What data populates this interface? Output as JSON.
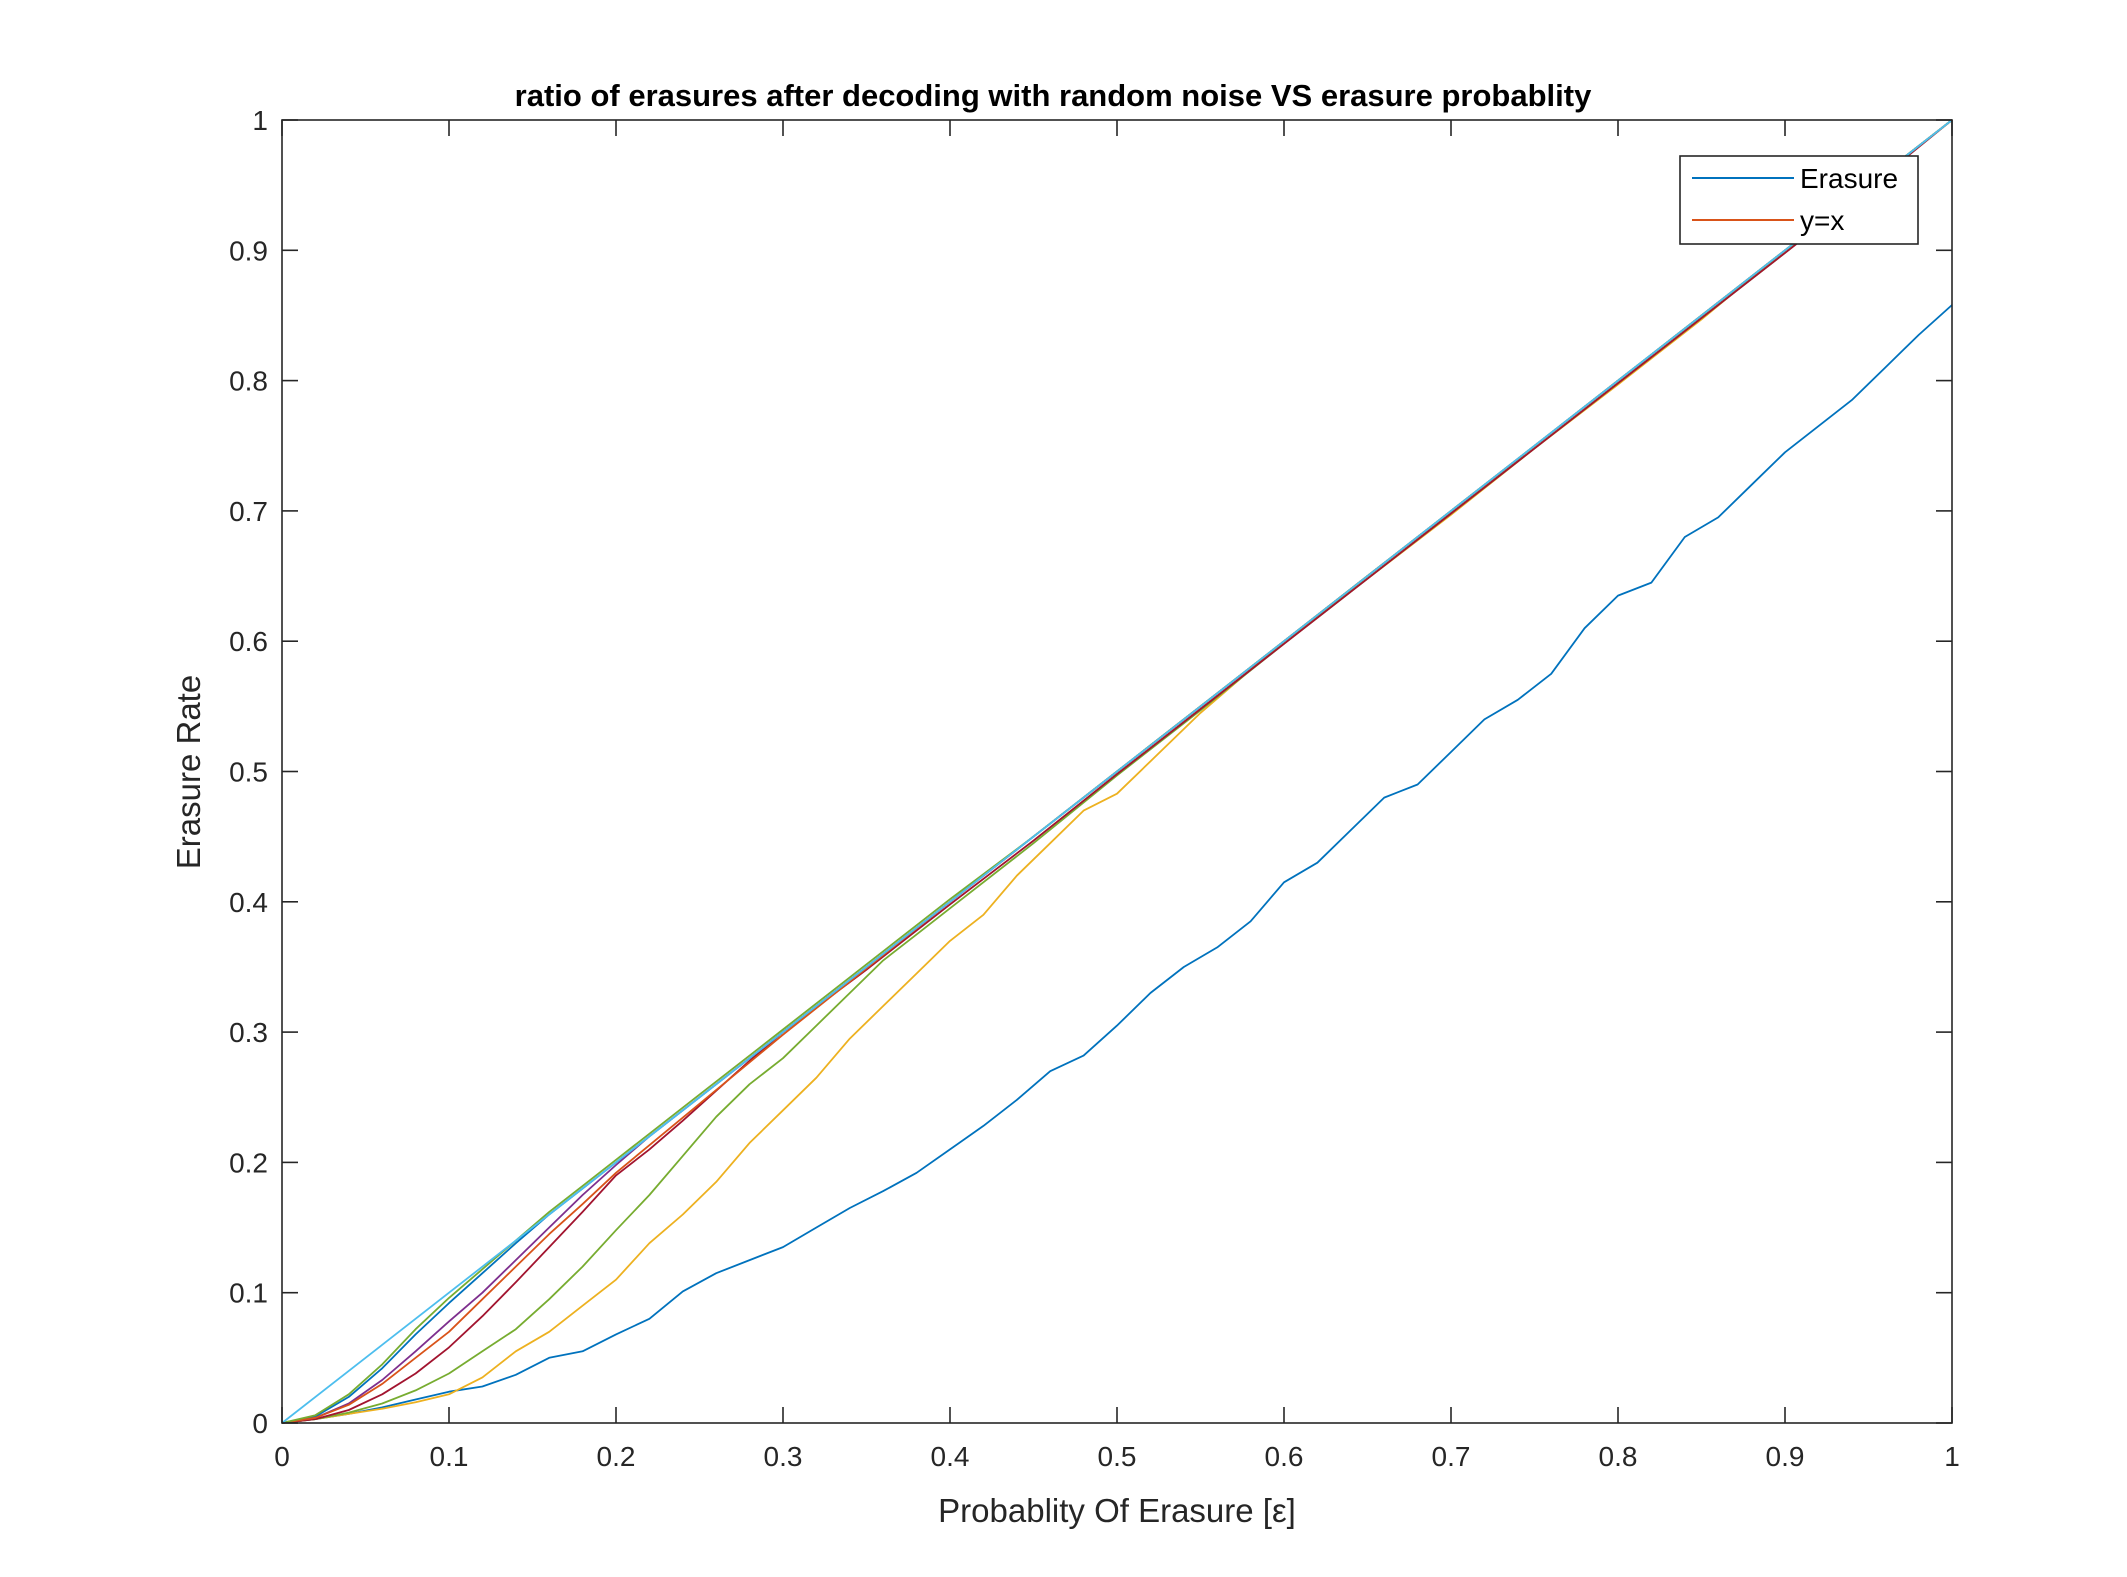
{
  "chart_data": {
    "type": "line",
    "title": "ratio of erasures after decoding with random noise VS erasure probablity",
    "xlabel": "Probablity Of Erasure [ε]",
    "ylabel": "Erasure Rate",
    "xlim": [
      0,
      1
    ],
    "ylim": [
      0,
      1
    ],
    "xticks": [
      "0",
      "0.1",
      "0.2",
      "0.3",
      "0.4",
      "0.5",
      "0.6",
      "0.7",
      "0.8",
      "0.9",
      "1"
    ],
    "yticks": [
      "0",
      "0.1",
      "0.2",
      "0.3",
      "0.4",
      "0.5",
      "0.6",
      "0.7",
      "0.8",
      "0.9",
      "1"
    ],
    "grid": false,
    "legend": {
      "placement": "top-right",
      "entries": [
        {
          "label": "Erasure",
          "color": "#0072BD"
        },
        {
          "label": "y=x",
          "color": "#D95319"
        }
      ]
    },
    "series": [
      {
        "color": "#0072BD",
        "x": [
          0,
          0.02,
          0.04,
          0.06,
          0.08,
          0.1,
          0.12,
          0.14,
          0.16,
          0.18,
          0.2,
          0.22,
          0.24,
          0.26,
          0.28,
          0.3,
          0.32,
          0.34,
          0.36,
          0.38,
          0.4,
          0.42,
          0.44,
          0.46,
          0.48,
          0.5,
          0.52,
          0.54,
          0.56,
          0.58,
          0.6,
          0.62,
          0.64,
          0.66,
          0.68,
          0.7,
          0.72,
          0.74,
          0.76,
          0.78,
          0.8,
          0.82,
          0.84,
          0.86,
          0.88,
          0.9,
          0.92,
          0.94,
          0.96,
          0.98,
          1.0
        ],
        "y": [
          0,
          0.003,
          0.007,
          0.012,
          0.018,
          0.024,
          0.028,
          0.037,
          0.05,
          0.055,
          0.068,
          0.08,
          0.101,
          0.115,
          0.125,
          0.135,
          0.15,
          0.165,
          0.178,
          0.192,
          0.21,
          0.228,
          0.248,
          0.27,
          0.282,
          0.305,
          0.33,
          0.35,
          0.365,
          0.385,
          0.415,
          0.43,
          0.455,
          0.48,
          0.49,
          0.515,
          0.54,
          0.555,
          0.575,
          0.61,
          0.635,
          0.645,
          0.68,
          0.695,
          0.72,
          0.745,
          0.765,
          0.785,
          0.81,
          0.835,
          0.858
        ]
      },
      {
        "color": "#EDB120",
        "x": [
          0,
          0.02,
          0.04,
          0.06,
          0.08,
          0.1,
          0.12,
          0.14,
          0.16,
          0.18,
          0.2,
          0.22,
          0.24,
          0.26,
          0.28,
          0.3,
          0.32,
          0.34,
          0.36,
          0.38,
          0.4,
          0.42,
          0.44,
          0.46,
          0.48,
          0.5,
          0.55,
          0.6,
          0.65,
          0.7,
          0.75,
          0.8,
          0.85,
          0.9,
          0.95,
          1.0
        ],
        "y": [
          0,
          0.003,
          0.007,
          0.011,
          0.016,
          0.022,
          0.035,
          0.055,
          0.07,
          0.09,
          0.11,
          0.138,
          0.16,
          0.185,
          0.215,
          0.24,
          0.265,
          0.295,
          0.32,
          0.345,
          0.37,
          0.39,
          0.42,
          0.445,
          0.47,
          0.483,
          0.545,
          0.6,
          0.648,
          0.697,
          0.748,
          0.797,
          0.847,
          0.9,
          0.95,
          1.0
        ]
      },
      {
        "color": "#77AC30",
        "x": [
          0,
          0.02,
          0.04,
          0.06,
          0.08,
          0.1,
          0.12,
          0.14,
          0.16,
          0.18,
          0.2,
          0.22,
          0.24,
          0.26,
          0.28,
          0.3,
          0.32,
          0.34,
          0.36,
          0.38,
          0.4,
          0.45,
          0.5,
          0.55,
          0.6,
          0.65,
          0.7,
          0.75,
          0.8,
          0.85,
          0.9,
          0.95,
          1.0
        ],
        "y": [
          0,
          0.003,
          0.008,
          0.015,
          0.025,
          0.038,
          0.055,
          0.072,
          0.095,
          0.12,
          0.148,
          0.175,
          0.205,
          0.235,
          0.26,
          0.28,
          0.305,
          0.33,
          0.355,
          0.375,
          0.395,
          0.445,
          0.497,
          0.547,
          0.598,
          0.648,
          0.698,
          0.748,
          0.798,
          0.848,
          0.898,
          0.95,
          1.0
        ]
      },
      {
        "color": "#A2142F",
        "x": [
          0,
          0.02,
          0.04,
          0.06,
          0.08,
          0.1,
          0.12,
          0.14,
          0.16,
          0.18,
          0.2,
          0.22,
          0.24,
          0.26,
          0.28,
          0.3,
          0.35,
          0.4,
          0.45,
          0.5,
          0.55,
          0.6,
          0.65,
          0.7,
          0.75,
          0.8,
          0.85,
          0.9,
          0.95,
          1.0
        ],
        "y": [
          0,
          0.003,
          0.01,
          0.022,
          0.038,
          0.058,
          0.082,
          0.108,
          0.135,
          0.162,
          0.19,
          0.21,
          0.232,
          0.255,
          0.278,
          0.3,
          0.348,
          0.398,
          0.447,
          0.498,
          0.548,
          0.598,
          0.648,
          0.698,
          0.748,
          0.798,
          0.848,
          0.898,
          0.948,
          1.0
        ]
      },
      {
        "color": "#7E2F8E",
        "x": [
          0,
          0.02,
          0.04,
          0.06,
          0.08,
          0.1,
          0.12,
          0.14,
          0.16,
          0.18,
          0.2,
          0.22,
          0.24,
          0.26,
          0.28,
          0.3,
          0.35,
          0.4,
          0.45,
          0.5,
          0.55,
          0.6,
          0.65,
          0.7,
          0.75,
          0.8,
          0.85,
          0.9,
          0.95,
          1.0
        ],
        "y": [
          0,
          0.004,
          0.015,
          0.033,
          0.055,
          0.078,
          0.1,
          0.125,
          0.15,
          0.175,
          0.198,
          0.22,
          0.24,
          0.26,
          0.28,
          0.3,
          0.35,
          0.4,
          0.45,
          0.5,
          0.55,
          0.6,
          0.65,
          0.7,
          0.75,
          0.8,
          0.85,
          0.9,
          0.95,
          1.0
        ]
      },
      {
        "color": "#0072BD",
        "x": [
          0,
          0.02,
          0.04,
          0.06,
          0.08,
          0.1,
          0.12,
          0.14,
          0.16,
          0.18,
          0.2,
          0.25,
          0.3,
          0.35,
          0.4,
          0.45,
          0.5,
          0.55,
          0.6,
          0.65,
          0.7,
          0.75,
          0.8,
          0.85,
          0.9,
          0.95,
          1.0
        ],
        "y": [
          0,
          0.005,
          0.02,
          0.042,
          0.068,
          0.092,
          0.115,
          0.138,
          0.16,
          0.18,
          0.2,
          0.25,
          0.3,
          0.35,
          0.4,
          0.45,
          0.5,
          0.55,
          0.6,
          0.65,
          0.7,
          0.75,
          0.8,
          0.85,
          0.9,
          0.95,
          1.0
        ]
      },
      {
        "color": "#D95319",
        "x": [
          0,
          0.02,
          0.04,
          0.06,
          0.08,
          0.1,
          0.12,
          0.14,
          0.16,
          0.18,
          0.2,
          0.25,
          0.3,
          0.35,
          0.4,
          0.45,
          0.5,
          0.55,
          0.6,
          0.65,
          0.7,
          0.75,
          0.8,
          0.85,
          0.9,
          0.95,
          1.0
        ],
        "y": [
          0,
          0.004,
          0.014,
          0.03,
          0.05,
          0.07,
          0.095,
          0.12,
          0.145,
          0.168,
          0.192,
          0.245,
          0.298,
          0.349,
          0.4,
          0.45,
          0.5,
          0.55,
          0.6,
          0.65,
          0.7,
          0.75,
          0.8,
          0.85,
          0.9,
          0.95,
          1.0
        ]
      },
      {
        "color": "#77AC30",
        "x": [
          0,
          0.02,
          0.04,
          0.06,
          0.08,
          0.1,
          0.12,
          0.14,
          0.16,
          0.18,
          0.2,
          0.25,
          0.3,
          0.35,
          0.4,
          0.45,
          0.5,
          0.55,
          0.6,
          0.65,
          0.7,
          0.75,
          0.8,
          0.85,
          0.9,
          0.95,
          1.0
        ],
        "y": [
          0,
          0.006,
          0.022,
          0.045,
          0.072,
          0.096,
          0.118,
          0.14,
          0.162,
          0.182,
          0.202,
          0.252,
          0.302,
          0.352,
          0.402,
          0.45,
          0.5,
          0.55,
          0.6,
          0.65,
          0.7,
          0.75,
          0.8,
          0.85,
          0.9,
          0.95,
          1.0
        ]
      },
      {
        "color": "#4DBEEE",
        "x": [
          0,
          1
        ],
        "y": [
          0,
          1
        ]
      }
    ]
  }
}
